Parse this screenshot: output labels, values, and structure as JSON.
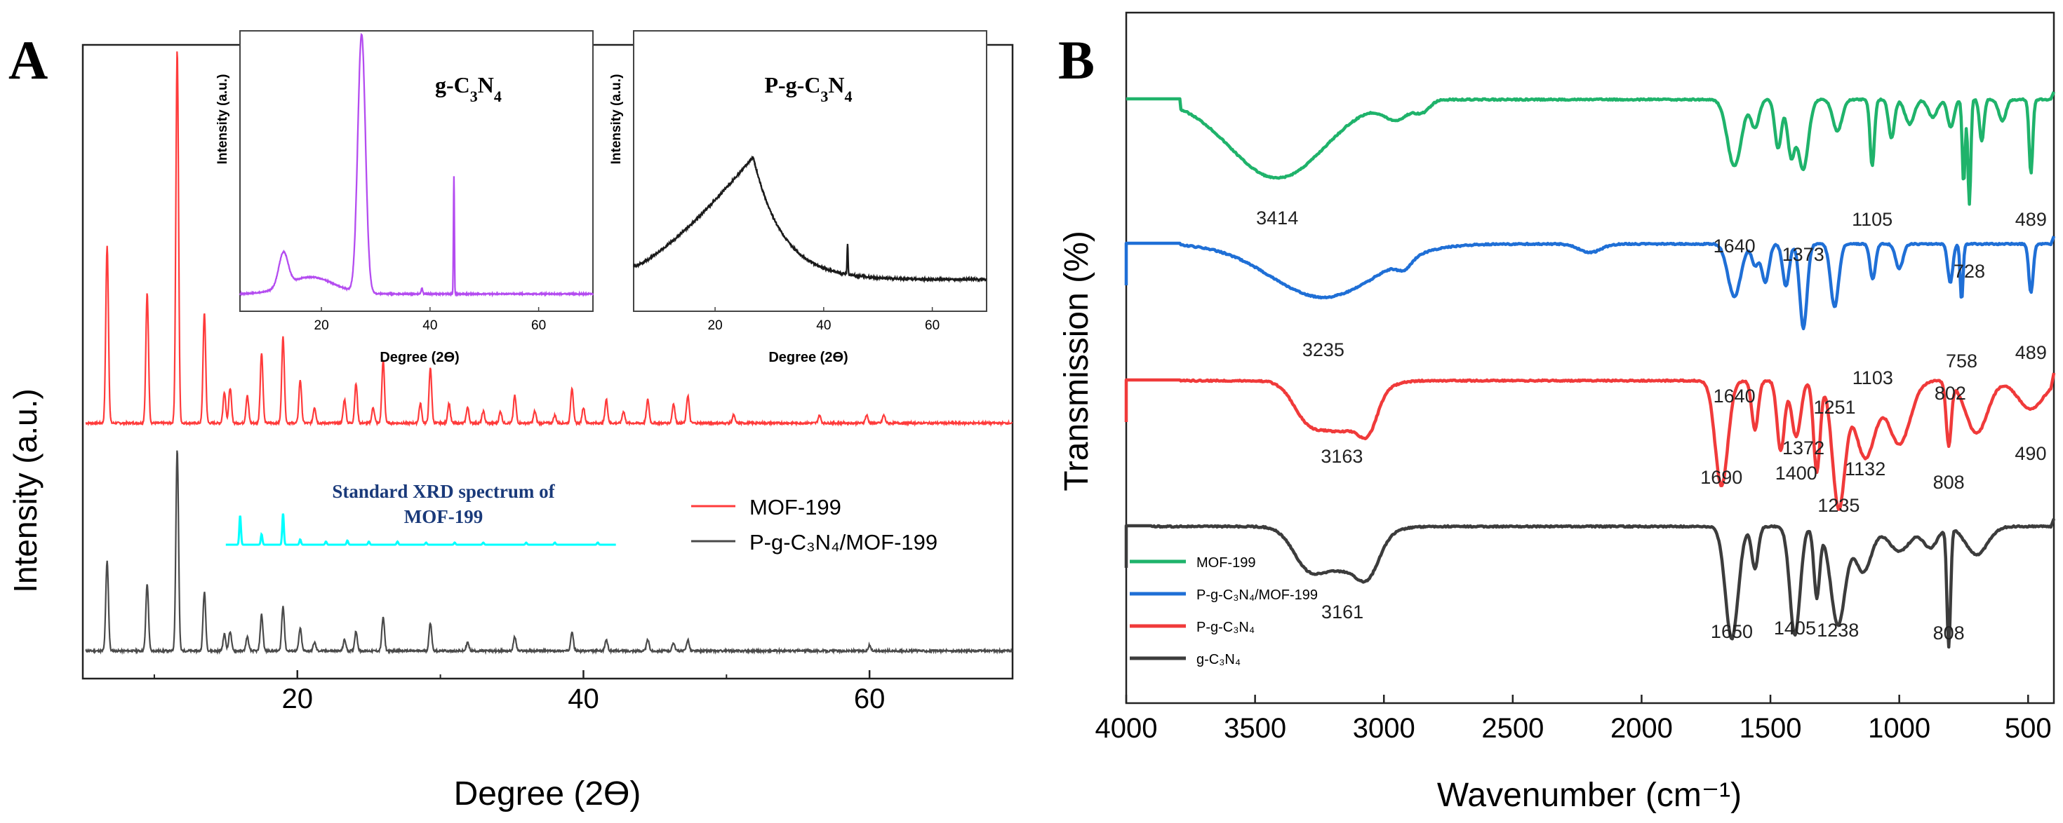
{
  "chart_data": [
    {
      "type": "line",
      "panel_label": "A",
      "xlabel": "Degree (2ϴ)",
      "ylabel": "Intensity (a.u.)",
      "xlim": [
        5,
        70
      ],
      "x_ticks": [
        "20",
        "40",
        "60"
      ],
      "legend": {
        "placement": "center-right",
        "entries": [
          "MOF-199",
          "P-g-C₃N₄/MOF-199"
        ]
      },
      "annotation": {
        "line1": "Standard XRD spectrum of",
        "line2": "MOF-199",
        "color": "#00ffff"
      },
      "series": [
        {
          "name": "MOF-199",
          "color": "#ff3b3b",
          "peaks": [
            [
              6.7,
              0.45
            ],
            [
              9.5,
              0.33
            ],
            [
              11.6,
              0.95
            ],
            [
              13.5,
              0.28
            ],
            [
              14.9,
              0.08
            ],
            [
              15.3,
              0.09
            ],
            [
              16.5,
              0.07
            ],
            [
              17.5,
              0.18
            ],
            [
              19.0,
              0.22
            ],
            [
              20.2,
              0.11
            ],
            [
              21.2,
              0.04
            ],
            [
              23.3,
              0.06
            ],
            [
              24.1,
              0.1
            ],
            [
              25.3,
              0.04
            ],
            [
              26.0,
              0.16
            ],
            [
              28.6,
              0.05
            ],
            [
              29.3,
              0.14
            ],
            [
              30.6,
              0.05
            ],
            [
              31.9,
              0.04
            ],
            [
              33.0,
              0.03
            ],
            [
              34.2,
              0.03
            ],
            [
              35.2,
              0.07
            ],
            [
              36.6,
              0.03
            ],
            [
              38.0,
              0.02
            ],
            [
              39.2,
              0.09
            ],
            [
              40.0,
              0.04
            ],
            [
              41.6,
              0.06
            ],
            [
              42.8,
              0.03
            ],
            [
              44.5,
              0.06
            ],
            [
              46.3,
              0.05
            ],
            [
              47.3,
              0.07
            ],
            [
              50.5,
              0.02
            ],
            [
              56.5,
              0.02
            ],
            [
              59.8,
              0.02
            ],
            [
              61.0,
              0.02
            ]
          ]
        },
        {
          "name": "P-g-C₃N₄/MOF-199",
          "color": "#4a4a4a",
          "peaks": [
            [
              6.7,
              0.32
            ],
            [
              9.5,
              0.24
            ],
            [
              11.6,
              0.72
            ],
            [
              13.5,
              0.21
            ],
            [
              14.9,
              0.06
            ],
            [
              15.3,
              0.07
            ],
            [
              16.5,
              0.05
            ],
            [
              17.5,
              0.13
            ],
            [
              19.0,
              0.16
            ],
            [
              20.2,
              0.08
            ],
            [
              21.2,
              0.03
            ],
            [
              23.3,
              0.04
            ],
            [
              24.1,
              0.07
            ],
            [
              26.0,
              0.12
            ],
            [
              29.3,
              0.1
            ],
            [
              31.9,
              0.03
            ],
            [
              35.2,
              0.05
            ],
            [
              39.2,
              0.07
            ],
            [
              41.6,
              0.04
            ],
            [
              44.5,
              0.04
            ],
            [
              46.3,
              0.03
            ],
            [
              47.3,
              0.04
            ],
            [
              60.0,
              0.02
            ]
          ]
        },
        {
          "name": "Standard XRD spectrum of MOF-199",
          "color": "#00ffff",
          "peaks": [
            [
              16.0,
              0.28
            ],
            [
              17.5,
              0.1
            ],
            [
              19.0,
              0.3
            ],
            [
              20.2,
              0.05
            ],
            [
              22.0,
              0.03
            ],
            [
              23.5,
              0.04
            ],
            [
              25.0,
              0.03
            ],
            [
              27.0,
              0.03
            ],
            [
              29.0,
              0.02
            ],
            [
              31.0,
              0.02
            ],
            [
              33.0,
              0.02
            ],
            [
              36.0,
              0.02
            ],
            [
              38.0,
              0.02
            ],
            [
              41.0,
              0.02
            ]
          ]
        }
      ]
    },
    {
      "type": "line",
      "inset_title_main": "g-C",
      "inset_title_sub1": "3",
      "inset_title_mid": "N",
      "inset_title_sub2": "4",
      "xlabel": "Degree (2ϴ)",
      "ylabel": "Intensity (a.u.)",
      "xlim": [
        5,
        70
      ],
      "x_ticks": [
        "20",
        "40",
        "60"
      ],
      "series": [
        {
          "name": "g-C₃N₄",
          "color": "#b44cf0",
          "peaks": [
            [
              13.0,
              0.12
            ],
            [
              27.4,
              0.92
            ],
            [
              44.4,
              0.42
            ]
          ],
          "baseline": 0.06
        }
      ]
    },
    {
      "type": "line",
      "inset_title_main": "P-g-C",
      "inset_title_sub1": "3",
      "inset_title_mid": "N",
      "inset_title_sub2": "4",
      "xlabel": "Degree (2ϴ)",
      "ylabel": "Intensity (a.u.)",
      "xlim": [
        5,
        70
      ],
      "x_ticks": [
        "20",
        "40",
        "60"
      ],
      "series": [
        {
          "name": "P-g-C₃N₄",
          "color": "#1a1a1a",
          "broad_hump": {
            "start": 5,
            "peak": 27,
            "end": 70
          },
          "peaks": [
            [
              44.4,
              0.14
            ]
          ]
        }
      ]
    },
    {
      "type": "line",
      "panel_label": "B",
      "xlabel": "Wavenumber (cm⁻¹)",
      "ylabel": "Transmission (%)",
      "xlim": [
        4000,
        400
      ],
      "x_ticks": [
        "4000",
        "3500",
        "3000",
        "2500",
        "2000",
        "1500",
        "1000",
        "500"
      ],
      "legend": {
        "placement": "bottom-left",
        "entries": [
          "MOF-199",
          "P-g-C₃N₄/MOF-199",
          "P-g-C₃N₄",
          "g-C₃N₄"
        ]
      },
      "series": [
        {
          "name": "MOF-199",
          "color": "#1fb36b",
          "labels": [
            "3414",
            "1640",
            "1373",
            "1105",
            "728",
            "489"
          ]
        },
        {
          "name": "P-g-C₃N₄/MOF-199",
          "color": "#1f6fd6",
          "labels": [
            "3235",
            "1640",
            "1372",
            "1251",
            "1103",
            "802",
            "758",
            "489"
          ]
        },
        {
          "name": "P-g-C₃N₄",
          "color": "#f03a3a",
          "labels": [
            "3163",
            "1690",
            "1400",
            "1235",
            "1132",
            "808",
            "490"
          ]
        },
        {
          "name": "g-C₃N₄",
          "color": "#3c3c3c",
          "labels": [
            "3161",
            "1650",
            "1405",
            "1238",
            "808"
          ]
        }
      ]
    }
  ]
}
